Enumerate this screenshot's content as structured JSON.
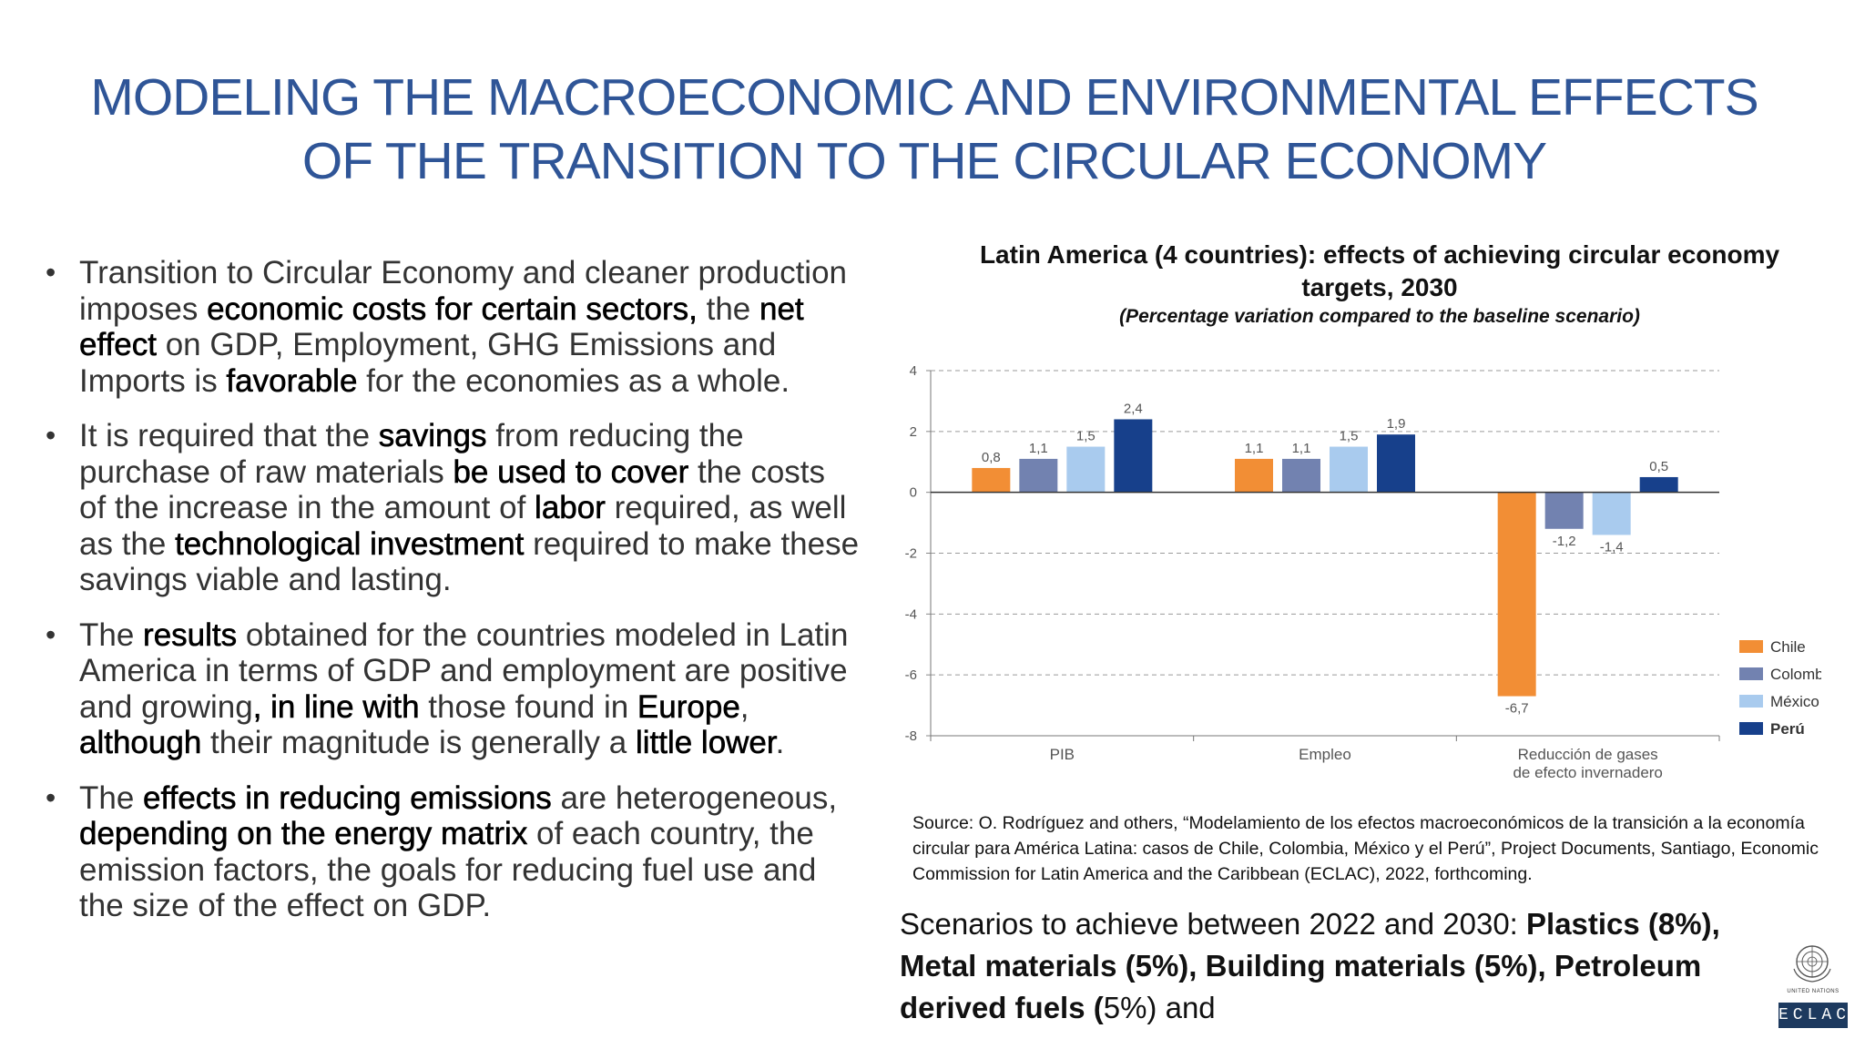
{
  "slide": {
    "title_line1": "MODELING THE MACROECONOMIC AND ENVIRONMENTAL EFFECTS",
    "title_line2": "OF THE TRANSITION TO THE CIRCULAR ECONOMY"
  },
  "bullets": [
    {
      "segments": [
        {
          "text": "Transition to Circular Economy and cleaner production imposes ",
          "bold": false
        },
        {
          "text": "economic costs for certain sectors,",
          "bold": true
        },
        {
          "text": " the ",
          "bold": false
        },
        {
          "text": "net effect",
          "bold": true
        },
        {
          "text": " on GDP, Employment, GHG Emissions and Imports is ",
          "bold": false
        },
        {
          "text": "favorable",
          "bold": true
        },
        {
          "text": " for the economies as a whole.",
          "bold": false
        }
      ]
    },
    {
      "segments": [
        {
          "text": "It is required that the ",
          "bold": false
        },
        {
          "text": "savings",
          "bold": true
        },
        {
          "text": " from reducing the purchase of raw materials ",
          "bold": false
        },
        {
          "text": "be used to cover",
          "bold": true
        },
        {
          "text": " the costs of the increase in the amount of ",
          "bold": false
        },
        {
          "text": "labor",
          "bold": true
        },
        {
          "text": " required, as well as the ",
          "bold": false
        },
        {
          "text": "technological investment",
          "bold": true
        },
        {
          "text": " required to make these savings viable and lasting.",
          "bold": false
        }
      ]
    },
    {
      "segments": [
        {
          "text": "The ",
          "bold": false
        },
        {
          "text": "results",
          "bold": true
        },
        {
          "text": " obtained for the countries modeled in Latin America in terms of GDP and employment are positive and growing",
          "bold": false
        },
        {
          "text": ", in line with",
          "bold": true
        },
        {
          "text": " those found in ",
          "bold": false
        },
        {
          "text": "Europe",
          "bold": true
        },
        {
          "text": ", ",
          "bold": false
        },
        {
          "text": "although",
          "bold": true
        },
        {
          "text": " their magnitude is generally a ",
          "bold": false
        },
        {
          "text": "little lower",
          "bold": true
        },
        {
          "text": ".",
          "bold": false
        }
      ]
    },
    {
      "segments": [
        {
          "text": "The ",
          "bold": false
        },
        {
          "text": "effects in reducing emissions",
          "bold": true
        },
        {
          "text": " are heterogeneous, ",
          "bold": false
        },
        {
          "text": "depending on the energy matrix",
          "bold": true
        },
        {
          "text": " of each country, the emission factors, the goals for reducing fuel use and the size of the effect on GDP.",
          "bold": false
        }
      ]
    }
  ],
  "chart_data": {
    "type": "bar",
    "title": "Latin America (4 countries): effects of achieving circular economy targets, 2030",
    "subtitle": "(Percentage variation compared to the baseline scenario)",
    "categories": [
      "PIB",
      "Empleo",
      "Reducción de gases de efecto invernadero"
    ],
    "category_lines": [
      [
        "PIB"
      ],
      [
        "Empleo"
      ],
      [
        "Reducción de gases",
        "de efecto invernadero"
      ]
    ],
    "series": [
      {
        "name": "Chile",
        "color": "#f28e35",
        "values": [
          0.8,
          1.1,
          -6.7
        ],
        "labels": [
          "0,8",
          "1,1",
          "-6,7"
        ]
      },
      {
        "name": "Colombia",
        "color": "#7282b0",
        "values": [
          1.1,
          1.1,
          -1.2
        ],
        "labels": [
          "1,1",
          "1,1",
          "-1,2"
        ]
      },
      {
        "name": "México",
        "color": "#a9cbee",
        "values": [
          1.5,
          1.5,
          -1.4
        ],
        "labels": [
          "1,5",
          "1,5",
          "-1,4"
        ]
      },
      {
        "name": "Perú",
        "color": "#17408b",
        "values": [
          2.4,
          1.9,
          0.5
        ],
        "labels": [
          "2,4",
          "1,9",
          "0,5"
        ]
      }
    ],
    "ylim": [
      -8,
      4
    ],
    "yticks": [
      4,
      2,
      0,
      -2,
      -4,
      -6,
      -8
    ],
    "grid": true,
    "legend_position": "bottom-right",
    "source": "Source: O. Rodríguez and others, “Modelamiento de los efectos macroeconómicos de la transición a la economía circular para América Latina: casos de Chile, Colombia, México y el Perú”, Project Documents, Santiago, Economic Commission for Latin America and the Caribbean (ECLAC), 2022, forthcoming."
  },
  "scenarios": {
    "segments": [
      {
        "text": "Scenarios to achieve between 2022 and 2030: ",
        "bold": false
      },
      {
        "text": "Plastics (8%), Metal materials (5%), Building materials (5%), Petroleum derived fuels (",
        "bold": true
      },
      {
        "text": "5%) and",
        "bold": false
      }
    ]
  },
  "logo": {
    "un_text": "UNITED NATIONS",
    "eclac_text": "ECLAC"
  }
}
